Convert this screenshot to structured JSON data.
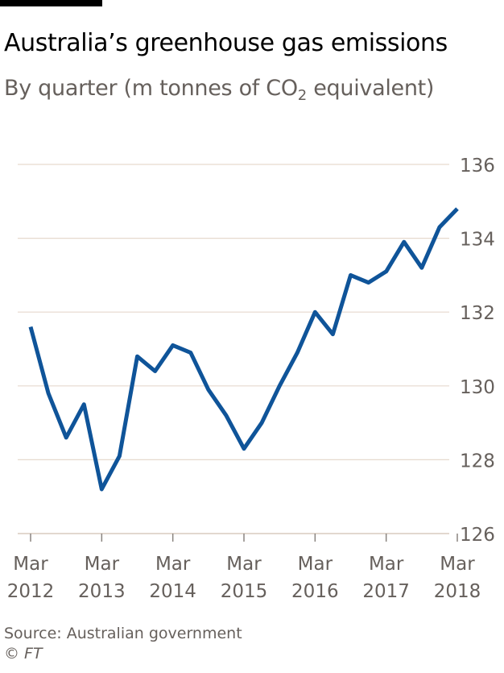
{
  "header": {
    "title": "Australia’s greenhouse gas emissions",
    "subtitle_main": "By quarter (m tonnes of CO",
    "subtitle_sub": "2",
    "subtitle_end": " equivalent)"
  },
  "footer": {
    "source": "Source: Australian government",
    "credit_symbol": "©",
    "credit_name": "FT"
  },
  "colors": {
    "line": "#0f5499",
    "grid": "#e6d9ce",
    "axis_text": "#66605c"
  },
  "chart_data": {
    "type": "line",
    "title": "Australia’s greenhouse gas emissions",
    "subtitle": "By quarter (m tonnes of CO2 equivalent)",
    "xlabel": "",
    "ylabel": "",
    "ylim": [
      126,
      136
    ],
    "yticks": [
      126,
      128,
      130,
      132,
      134,
      136
    ],
    "y_axis_side": "right",
    "grid": true,
    "legend": "none",
    "xticks": [
      {
        "x": "Mar 2012",
        "month": "Mar",
        "year": "2012"
      },
      {
        "x": "Mar 2013",
        "month": "Mar",
        "year": "2013"
      },
      {
        "x": "Mar 2014",
        "month": "Mar",
        "year": "2014"
      },
      {
        "x": "Mar 2015",
        "month": "Mar",
        "year": "2015"
      },
      {
        "x": "Mar 2016",
        "month": "Mar",
        "year": "2016"
      },
      {
        "x": "Mar 2017",
        "month": "Mar",
        "year": "2017"
      },
      {
        "x": "Mar 2018",
        "month": "Mar",
        "year": "2018"
      }
    ],
    "x": [
      "Mar 2012",
      "Jun 2012",
      "Sep 2012",
      "Dec 2012",
      "Mar 2013",
      "Jun 2013",
      "Sep 2013",
      "Dec 2013",
      "Mar 2014",
      "Jun 2014",
      "Sep 2014",
      "Dec 2014",
      "Mar 2015",
      "Jun 2015",
      "Sep 2015",
      "Dec 2015",
      "Mar 2016",
      "Jun 2016",
      "Sep 2016",
      "Dec 2016",
      "Mar 2017",
      "Jun 2017",
      "Sep 2017",
      "Dec 2017",
      "Mar 2018"
    ],
    "series": [
      {
        "values": [
          131.6,
          129.8,
          128.6,
          129.5,
          127.2,
          128.1,
          130.8,
          130.4,
          131.1,
          130.9,
          129.9,
          129.2,
          128.3,
          129.0,
          130.0,
          130.9,
          132.0,
          131.4,
          133.0,
          132.8,
          133.1,
          133.9,
          133.2,
          134.3,
          134.8
        ]
      }
    ]
  }
}
